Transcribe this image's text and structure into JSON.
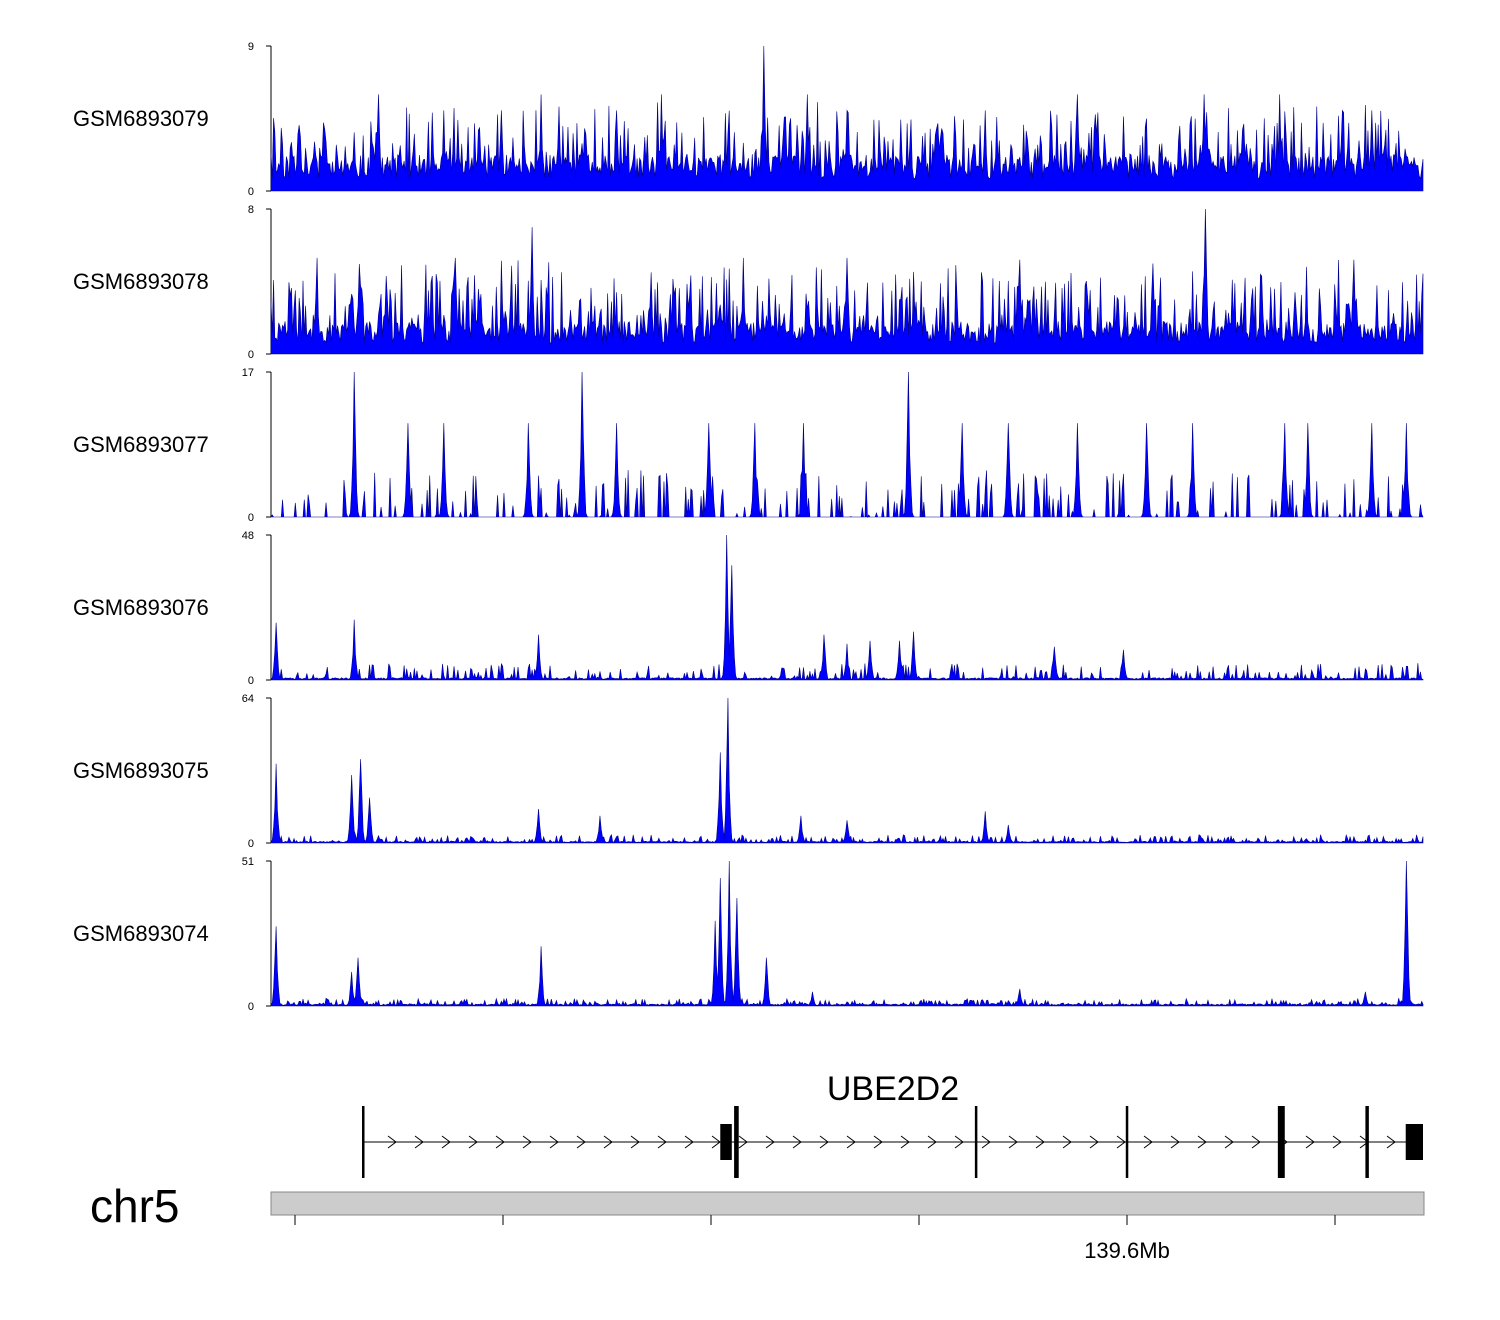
{
  "chart_data": {
    "type": "area",
    "title": "",
    "color": "#0000ff",
    "tracks": [
      {
        "name": "GSM6893079",
        "ymax": 9,
        "ymin": 0,
        "peaks": [
          [
            0.093,
            6
          ],
          [
            0.234,
            6
          ],
          [
            0.339,
            6
          ],
          [
            0.428,
            9
          ],
          [
            0.465,
            6
          ],
          [
            0.7,
            6
          ],
          [
            0.875,
            6
          ],
          [
            0.81,
            6
          ],
          [
            0.955,
            5
          ],
          [
            0.15,
            5
          ],
          [
            0.2,
            5
          ],
          [
            0.5,
            5
          ],
          [
            0.3,
            5
          ],
          [
            0.62,
            5
          ],
          [
            0.93,
            5
          ]
        ],
        "baseline": 1.5,
        "noise": 3.5,
        "spike_density": 0.35,
        "seed": 11
      },
      {
        "name": "GSM6893078",
        "ymax": 8,
        "ymin": 0,
        "peaks": [
          [
            0.811,
            8
          ],
          [
            0.227,
            7
          ],
          [
            0.04,
            5.3
          ],
          [
            0.16,
            5.3
          ],
          [
            0.41,
            5.3
          ],
          [
            0.5,
            5.3
          ],
          [
            0.65,
            5.2
          ],
          [
            0.94,
            5.2
          ],
          [
            0.1,
            4.3
          ],
          [
            0.33,
            4.5
          ],
          [
            0.86,
            4.3
          ]
        ],
        "baseline": 1.2,
        "noise": 3.5,
        "spike_density": 0.4,
        "seed": 23
      },
      {
        "name": "GSM6893077",
        "ymax": 17,
        "ymin": 0,
        "peaks": [
          [
            0.072,
            17
          ],
          [
            0.27,
            17
          ],
          [
            0.553,
            17
          ],
          [
            0.119,
            11
          ],
          [
            0.15,
            11
          ],
          [
            0.223,
            11
          ],
          [
            0.3,
            11
          ],
          [
            0.38,
            11
          ],
          [
            0.42,
            11
          ],
          [
            0.462,
            11
          ],
          [
            0.6,
            11
          ],
          [
            0.64,
            11
          ],
          [
            0.7,
            11
          ],
          [
            0.76,
            11
          ],
          [
            0.8,
            11
          ],
          [
            0.88,
            11
          ],
          [
            0.9,
            11
          ],
          [
            0.955,
            11
          ],
          [
            0.985,
            11
          ]
        ],
        "baseline": 0,
        "noise": 5.5,
        "spike_density": 0.22,
        "seed": 37
      },
      {
        "name": "GSM6893076",
        "ymax": 48,
        "ymin": 0,
        "peaks": [
          [
            0.396,
            48
          ],
          [
            0.4,
            38
          ],
          [
            0.004,
            19
          ],
          [
            0.072,
            20
          ],
          [
            0.48,
            15
          ],
          [
            0.5,
            12
          ],
          [
            0.232,
            15
          ],
          [
            0.52,
            13
          ],
          [
            0.558,
            16
          ],
          [
            0.546,
            13
          ],
          [
            0.68,
            11
          ],
          [
            0.74,
            10
          ]
        ],
        "baseline": 0.5,
        "noise": 5,
        "spike_density": 0.25,
        "seed": 51
      },
      {
        "name": "GSM6893075",
        "ymax": 64,
        "ymin": 0,
        "peaks": [
          [
            0.397,
            64
          ],
          [
            0.39,
            40
          ],
          [
            0.004,
            35
          ],
          [
            0.078,
            37
          ],
          [
            0.07,
            30
          ],
          [
            0.086,
            20
          ],
          [
            0.232,
            15
          ],
          [
            0.46,
            12
          ],
          [
            0.62,
            14
          ],
          [
            0.5,
            10
          ],
          [
            0.285,
            12
          ],
          [
            0.64,
            8
          ]
        ],
        "baseline": 0.5,
        "noise": 3,
        "spike_density": 0.3,
        "seed": 67
      },
      {
        "name": "GSM6893074",
        "ymax": 51,
        "ymin": 0,
        "peaks": [
          [
            0.398,
            51
          ],
          [
            0.39,
            45
          ],
          [
            0.404,
            38
          ],
          [
            0.386,
            30
          ],
          [
            0.004,
            28
          ],
          [
            0.076,
            17
          ],
          [
            0.07,
            12
          ],
          [
            0.234,
            21
          ],
          [
            0.43,
            17
          ],
          [
            0.985,
            51
          ],
          [
            0.65,
            6
          ],
          [
            0.95,
            5
          ],
          [
            0.47,
            5
          ]
        ],
        "baseline": 0.5,
        "noise": 2,
        "spike_density": 0.3,
        "seed": 89
      }
    ],
    "gene": {
      "name": "UBE2D2",
      "strand": "+",
      "start_frac": 0.079,
      "end_frac": 1.0,
      "exons": [
        [
          0.079,
          0.081
        ],
        [
          0.39,
          0.4
        ],
        [
          0.402,
          0.406
        ],
        [
          0.611,
          0.613
        ],
        [
          0.742,
          0.744
        ],
        [
          0.874,
          0.88
        ],
        [
          0.95,
          0.953
        ],
        [
          0.985,
          1.0
        ]
      ]
    },
    "chromosome": {
      "label": "chr5",
      "tick_count": 6,
      "tick_labels": [
        "",
        "",
        "",
        "",
        "139.6Mb",
        ""
      ]
    }
  }
}
